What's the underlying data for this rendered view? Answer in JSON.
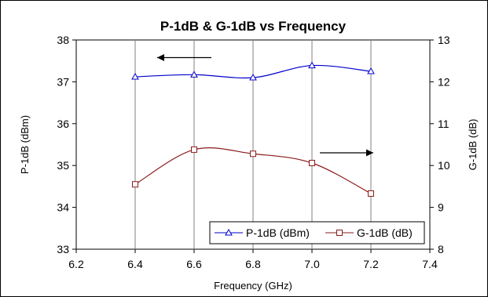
{
  "chart_data": {
    "type": "line",
    "title": "P-1dB & G-1dB vs Frequency",
    "xlabel": "Frequency (GHz)",
    "ylabel_left": "P-1dB (dBm)",
    "ylabel_right": "G-1dB (dB)",
    "xlim": [
      6.2,
      7.4
    ],
    "ylim_left": [
      33,
      38
    ],
    "ylim_right": [
      8,
      13
    ],
    "x_ticks": [
      "6.2",
      "6.4",
      "6.6",
      "6.8",
      "7.0",
      "7.2",
      "7.4"
    ],
    "y_left_ticks": [
      "33",
      "34",
      "35",
      "36",
      "37",
      "38"
    ],
    "y_right_ticks": [
      "8",
      "9",
      "10",
      "11",
      "12",
      "13"
    ],
    "grid": "vertical",
    "legend_position": "bottom-right",
    "series": [
      {
        "name": "P-1dB (dBm)",
        "axis": "left",
        "color": "#0000cc",
        "marker": "triangle",
        "x": [
          6.4,
          6.6,
          6.8,
          7.0,
          7.2
        ],
        "y": [
          37.12,
          37.17,
          37.1,
          37.39,
          37.25
        ]
      },
      {
        "name": "G-1dB (dB)",
        "axis": "right",
        "color": "#8b1a1a",
        "marker": "square",
        "x": [
          6.4,
          6.6,
          6.8,
          7.0,
          7.2
        ],
        "y": [
          9.55,
          10.38,
          10.28,
          10.06,
          9.33
        ]
      }
    ],
    "annotations": [
      {
        "type": "arrow",
        "direction": "left",
        "meaning": "P-1dB uses left axis"
      },
      {
        "type": "arrow",
        "direction": "right",
        "meaning": "G-1dB uses right axis"
      }
    ]
  }
}
